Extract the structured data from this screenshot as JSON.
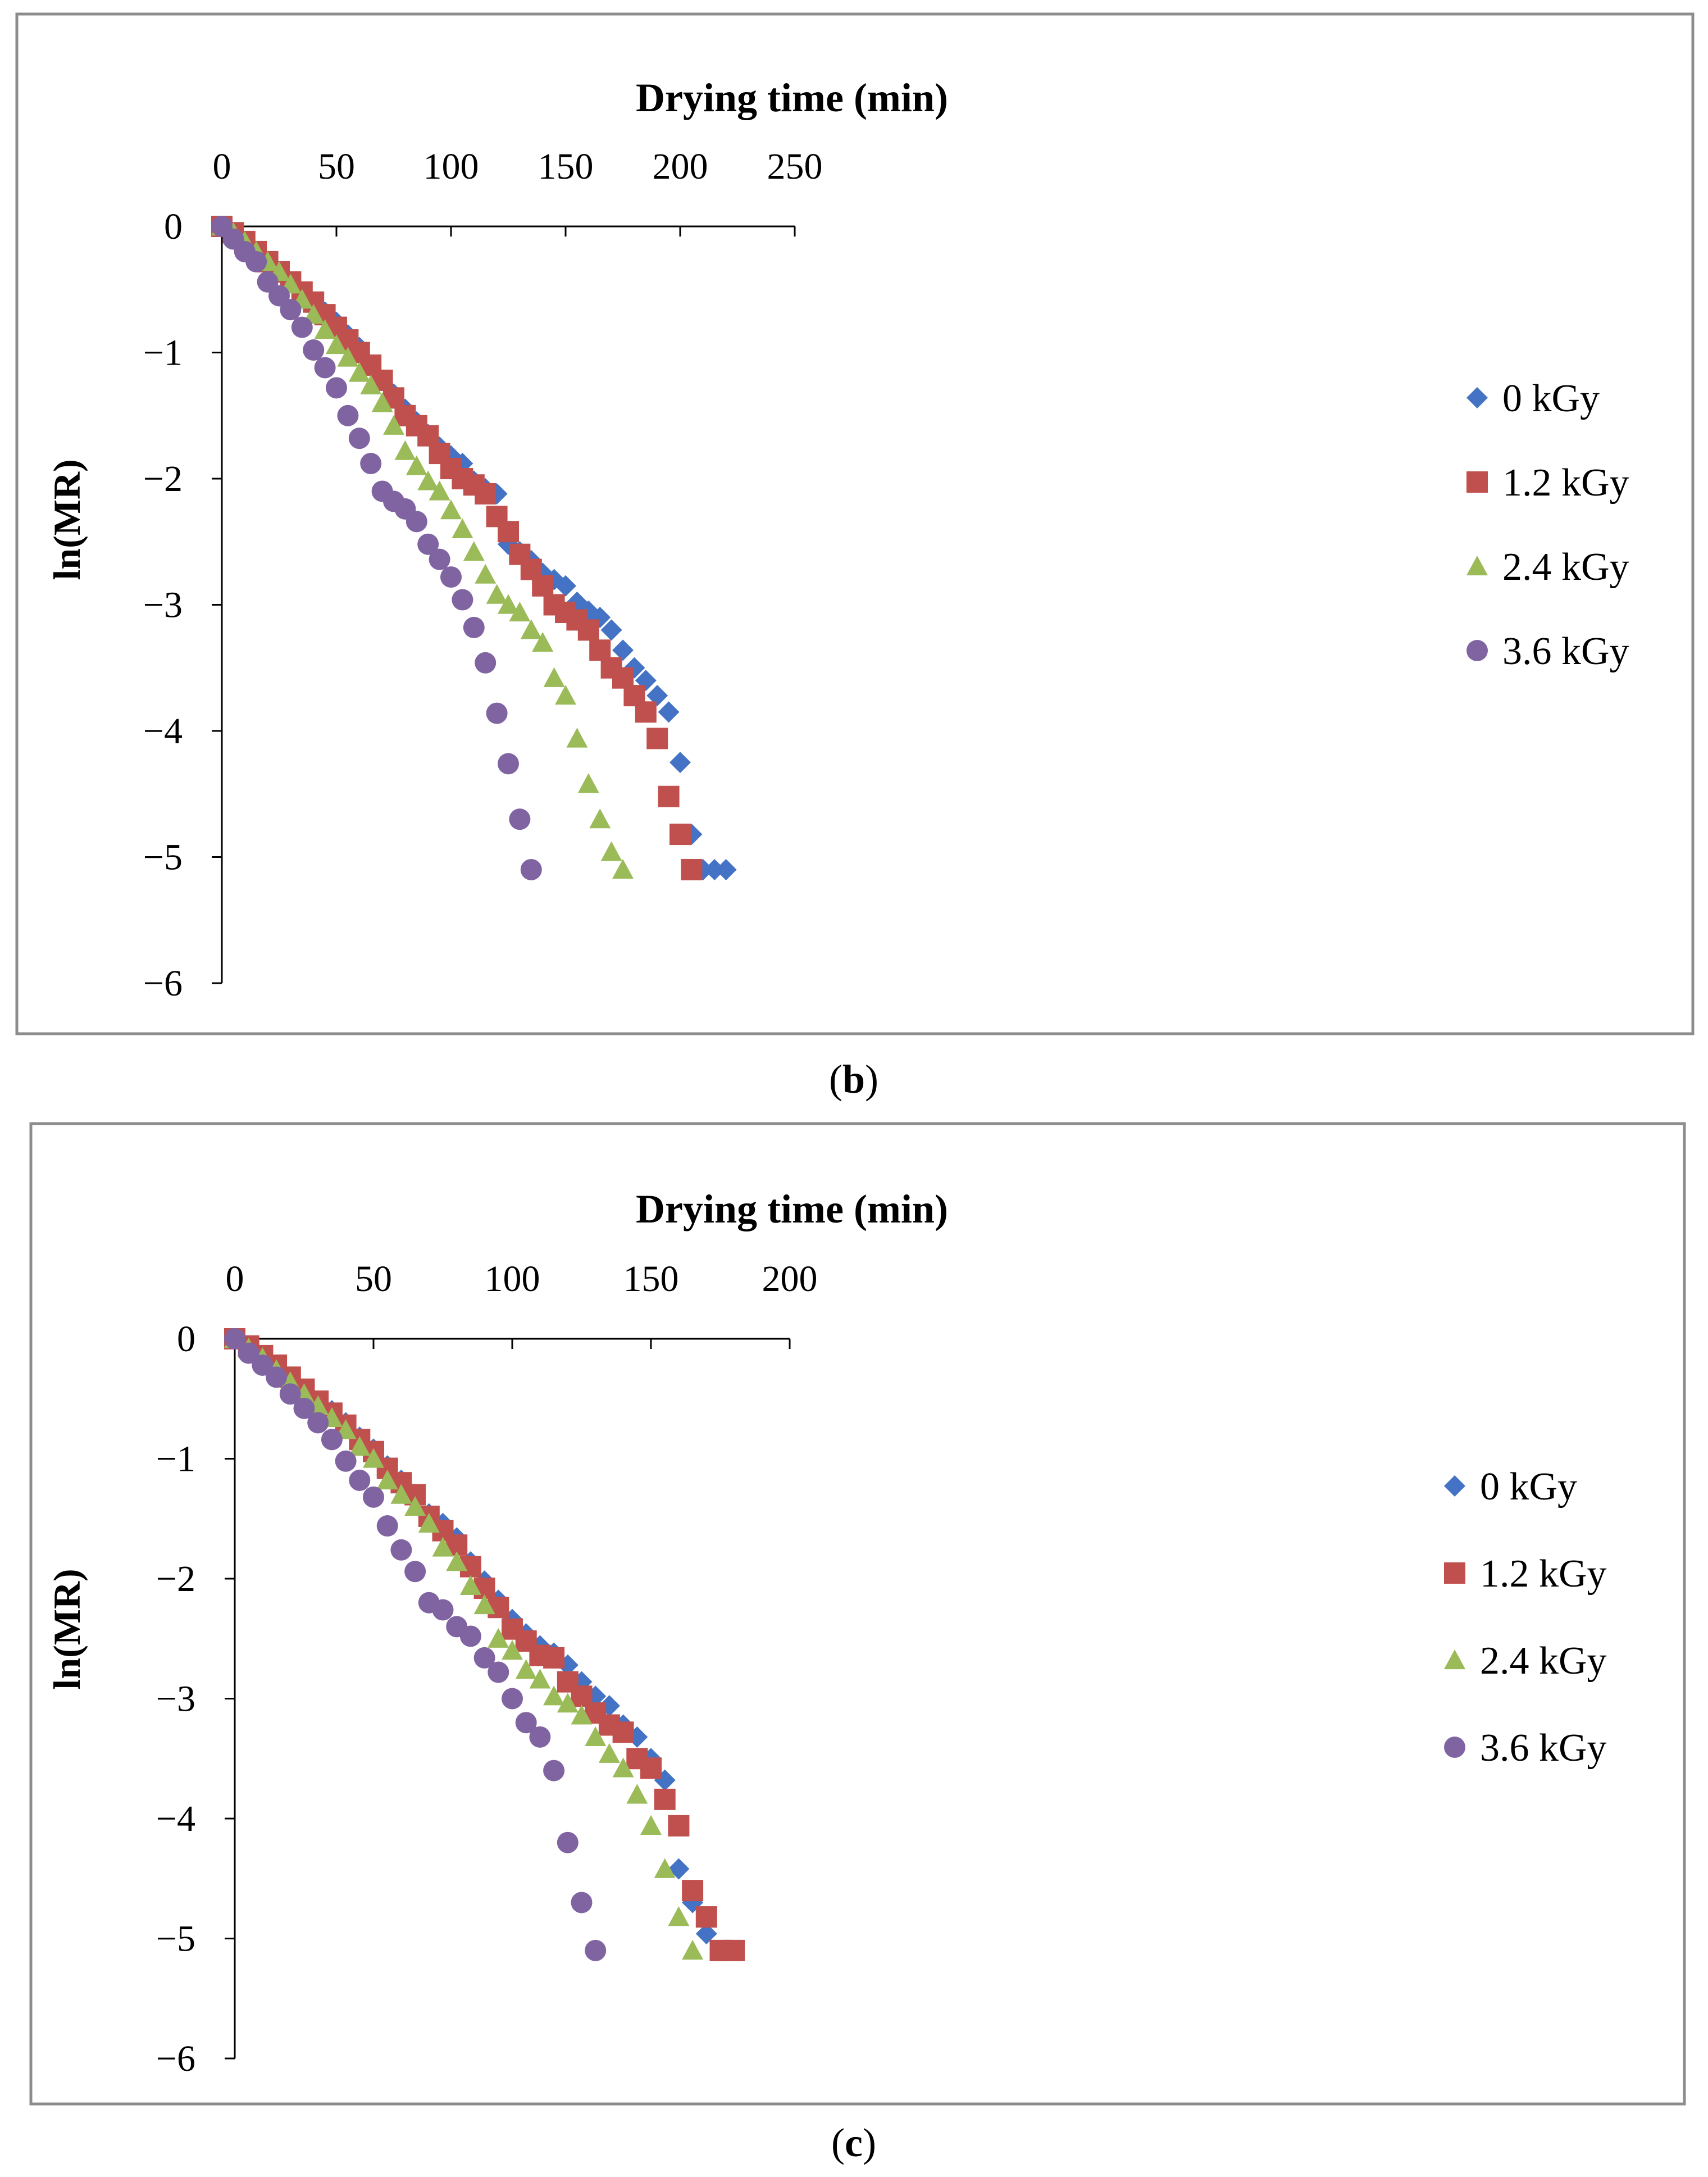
{
  "chart_data": [
    {
      "type": "scatter",
      "panel": "b",
      "caption": "(b)",
      "caption_parts": {
        "open": "(",
        "letter": "b",
        "close": ")"
      },
      "xlabel": "Drying time (min)",
      "ylabel": "ln(MR)",
      "xlim": [
        0,
        250
      ],
      "ylim": [
        -6,
        0
      ],
      "xticks": [
        0,
        50,
        100,
        150,
        200,
        250
      ],
      "yticks": [
        0,
        -1,
        -2,
        -3,
        -4,
        -5,
        -6
      ],
      "xtick_labels": [
        "0",
        "50",
        "100",
        "150",
        "200",
        "250"
      ],
      "ytick_labels": [
        "0",
        "−1",
        "−2",
        "−3",
        "−4",
        "−5",
        "−6"
      ],
      "legend_position": "right",
      "series": [
        {
          "name": "0 kGy",
          "marker": "diamond",
          "color": "#4472C4",
          "x": [
            0,
            5,
            10,
            15,
            20,
            25,
            30,
            35,
            40,
            45,
            50,
            55,
            60,
            65,
            70,
            75,
            80,
            85,
            90,
            95,
            100,
            105,
            110,
            115,
            120,
            125,
            130,
            135,
            140,
            145,
            150,
            155,
            160,
            165,
            170,
            175,
            180,
            185,
            190,
            195,
            200,
            205,
            210,
            215,
            220
          ],
          "y": [
            0,
            -0.05,
            -0.12,
            -0.2,
            -0.28,
            -0.36,
            -0.44,
            -0.52,
            -0.6,
            -0.68,
            -0.76,
            -0.86,
            -0.96,
            -1.1,
            -1.22,
            -1.33,
            -1.45,
            -1.55,
            -1.65,
            -1.75,
            -1.82,
            -1.88,
            -2.02,
            -2.08,
            -2.12,
            -2.52,
            -2.58,
            -2.65,
            -2.75,
            -2.8,
            -2.85,
            -2.98,
            -3.05,
            -3.1,
            -3.2,
            -3.36,
            -3.5,
            -3.6,
            -3.72,
            -3.85,
            -4.25,
            -4.82,
            -5.1,
            -5.1,
            -5.1
          ]
        },
        {
          "name": "1.2 kGy",
          "marker": "square",
          "color": "#C0504D",
          "x": [
            0,
            5,
            10,
            15,
            20,
            25,
            30,
            35,
            40,
            45,
            50,
            55,
            60,
            65,
            70,
            75,
            80,
            85,
            90,
            95,
            100,
            105,
            110,
            115,
            120,
            125,
            130,
            135,
            140,
            145,
            150,
            155,
            160,
            165,
            170,
            175,
            180,
            185,
            190,
            195,
            200,
            205
          ],
          "y": [
            0,
            -0.05,
            -0.12,
            -0.2,
            -0.28,
            -0.36,
            -0.44,
            -0.52,
            -0.6,
            -0.7,
            -0.8,
            -0.9,
            -1.0,
            -1.1,
            -1.22,
            -1.36,
            -1.5,
            -1.58,
            -1.66,
            -1.8,
            -1.92,
            -2.0,
            -2.05,
            -2.12,
            -2.3,
            -2.42,
            -2.6,
            -2.72,
            -2.85,
            -3.0,
            -3.06,
            -3.12,
            -3.2,
            -3.36,
            -3.5,
            -3.58,
            -3.72,
            -3.85,
            -4.06,
            -4.52,
            -4.82,
            -5.1
          ]
        },
        {
          "name": "2.4 kGy",
          "marker": "triangle",
          "color": "#9BBB59",
          "x": [
            0,
            5,
            10,
            15,
            20,
            25,
            30,
            35,
            40,
            45,
            50,
            55,
            60,
            65,
            70,
            75,
            80,
            85,
            90,
            95,
            100,
            105,
            110,
            115,
            120,
            125,
            130,
            135,
            140,
            145,
            150,
            155,
            160,
            165,
            170,
            175
          ],
          "y": [
            0,
            -0.05,
            -0.12,
            -0.2,
            -0.28,
            -0.36,
            -0.46,
            -0.58,
            -0.7,
            -0.82,
            -0.94,
            -1.04,
            -1.16,
            -1.26,
            -1.4,
            -1.58,
            -1.78,
            -1.9,
            -2.02,
            -2.1,
            -2.25,
            -2.4,
            -2.58,
            -2.76,
            -2.92,
            -3.0,
            -3.06,
            -3.2,
            -3.3,
            -3.58,
            -3.72,
            -4.06,
            -4.42,
            -4.7,
            -4.96,
            -5.1
          ]
        },
        {
          "name": "3.6 kGy",
          "marker": "circle",
          "color": "#8064A2",
          "x": [
            0,
            5,
            10,
            15,
            20,
            25,
            30,
            35,
            40,
            45,
            50,
            55,
            60,
            65,
            70,
            75,
            80,
            85,
            90,
            95,
            100,
            105,
            110,
            115,
            120,
            125,
            130,
            135
          ],
          "y": [
            0,
            -0.1,
            -0.2,
            -0.28,
            -0.44,
            -0.55,
            -0.66,
            -0.8,
            -0.98,
            -1.12,
            -1.28,
            -1.5,
            -1.68,
            -1.88,
            -2.1,
            -2.18,
            -2.24,
            -2.34,
            -2.52,
            -2.64,
            -2.78,
            -2.96,
            -3.18,
            -3.46,
            -3.86,
            -4.26,
            -4.7,
            -5.1
          ]
        }
      ]
    },
    {
      "type": "scatter",
      "panel": "c",
      "caption": "(c)",
      "caption_parts": {
        "open": "(",
        "letter": "c",
        "close": ")"
      },
      "xlabel": "Drying time (min)",
      "ylabel": "ln(MR)",
      "xlim": [
        0,
        200
      ],
      "ylim": [
        -6,
        0
      ],
      "xticks": [
        0,
        50,
        100,
        150,
        200
      ],
      "yticks": [
        0,
        -1,
        -2,
        -3,
        -4,
        -5,
        -6
      ],
      "xtick_labels": [
        "0",
        "50",
        "100",
        "150",
        "200"
      ],
      "ytick_labels": [
        "0",
        "−1",
        "−2",
        "−3",
        "−4",
        "−5",
        "−6"
      ],
      "legend_position": "right",
      "series": [
        {
          "name": "0 kGy",
          "marker": "diamond",
          "color": "#4472C4",
          "x": [
            0,
            5,
            10,
            15,
            20,
            25,
            30,
            35,
            40,
            45,
            50,
            55,
            60,
            65,
            70,
            75,
            80,
            85,
            90,
            95,
            100,
            105,
            110,
            115,
            120,
            125,
            130,
            135,
            140,
            145,
            150,
            155,
            160,
            165,
            170,
            175
          ],
          "y": [
            0,
            -0.06,
            -0.14,
            -0.22,
            -0.32,
            -0.42,
            -0.52,
            -0.6,
            -0.7,
            -0.82,
            -0.92,
            -1.06,
            -1.18,
            -1.3,
            -1.46,
            -1.54,
            -1.66,
            -1.86,
            -2.02,
            -2.18,
            -2.34,
            -2.46,
            -2.56,
            -2.62,
            -2.72,
            -2.86,
            -2.98,
            -3.06,
            -3.22,
            -3.32,
            -3.5,
            -3.68,
            -4.42,
            -4.7,
            -4.96,
            -5.1
          ]
        },
        {
          "name": "1.2 kGy",
          "marker": "square",
          "color": "#C0504D",
          "x": [
            0,
            5,
            10,
            15,
            20,
            25,
            30,
            35,
            40,
            45,
            50,
            55,
            60,
            65,
            70,
            75,
            80,
            85,
            90,
            95,
            100,
            105,
            110,
            115,
            120,
            125,
            130,
            135,
            140,
            145,
            150,
            155,
            160,
            165,
            170,
            175,
            180
          ],
          "y": [
            0,
            -0.06,
            -0.14,
            -0.22,
            -0.32,
            -0.42,
            -0.52,
            -0.62,
            -0.72,
            -0.84,
            -0.94,
            -1.08,
            -1.2,
            -1.3,
            -1.48,
            -1.6,
            -1.72,
            -1.9,
            -2.08,
            -2.24,
            -2.42,
            -2.52,
            -2.64,
            -2.66,
            -2.86,
            -2.98,
            -3.12,
            -3.22,
            -3.28,
            -3.5,
            -3.58,
            -3.84,
            -4.06,
            -4.6,
            -4.82,
            -5.1,
            -5.1
          ]
        },
        {
          "name": "2.4 kGy",
          "marker": "triangle",
          "color": "#9BBB59",
          "x": [
            0,
            5,
            10,
            15,
            20,
            25,
            30,
            35,
            40,
            45,
            50,
            55,
            60,
            65,
            70,
            75,
            80,
            85,
            90,
            95,
            100,
            105,
            110,
            115,
            120,
            125,
            130,
            135,
            140,
            145,
            150,
            155,
            160,
            165
          ],
          "y": [
            0,
            -0.08,
            -0.16,
            -0.26,
            -0.36,
            -0.46,
            -0.56,
            -0.66,
            -0.76,
            -0.9,
            -1.0,
            -1.18,
            -1.3,
            -1.4,
            -1.54,
            -1.74,
            -1.86,
            -2.06,
            -2.22,
            -2.5,
            -2.6,
            -2.76,
            -2.84,
            -2.98,
            -3.04,
            -3.14,
            -3.32,
            -3.46,
            -3.58,
            -3.8,
            -4.06,
            -4.42,
            -4.82,
            -5.1
          ]
        },
        {
          "name": "3.6 kGy",
          "marker": "circle",
          "color": "#8064A2",
          "x": [
            0,
            5,
            10,
            15,
            20,
            25,
            30,
            35,
            40,
            45,
            50,
            55,
            60,
            65,
            70,
            75,
            80,
            85,
            90,
            95,
            100,
            105,
            110,
            115,
            120,
            125,
            130
          ],
          "y": [
            0,
            -0.12,
            -0.22,
            -0.32,
            -0.46,
            -0.58,
            -0.7,
            -0.84,
            -1.02,
            -1.18,
            -1.32,
            -1.56,
            -1.76,
            -1.94,
            -2.2,
            -2.26,
            -2.4,
            -2.48,
            -2.66,
            -2.78,
            -3.0,
            -3.2,
            -3.32,
            -3.6,
            -4.2,
            -4.7,
            -5.1
          ]
        }
      ]
    }
  ]
}
